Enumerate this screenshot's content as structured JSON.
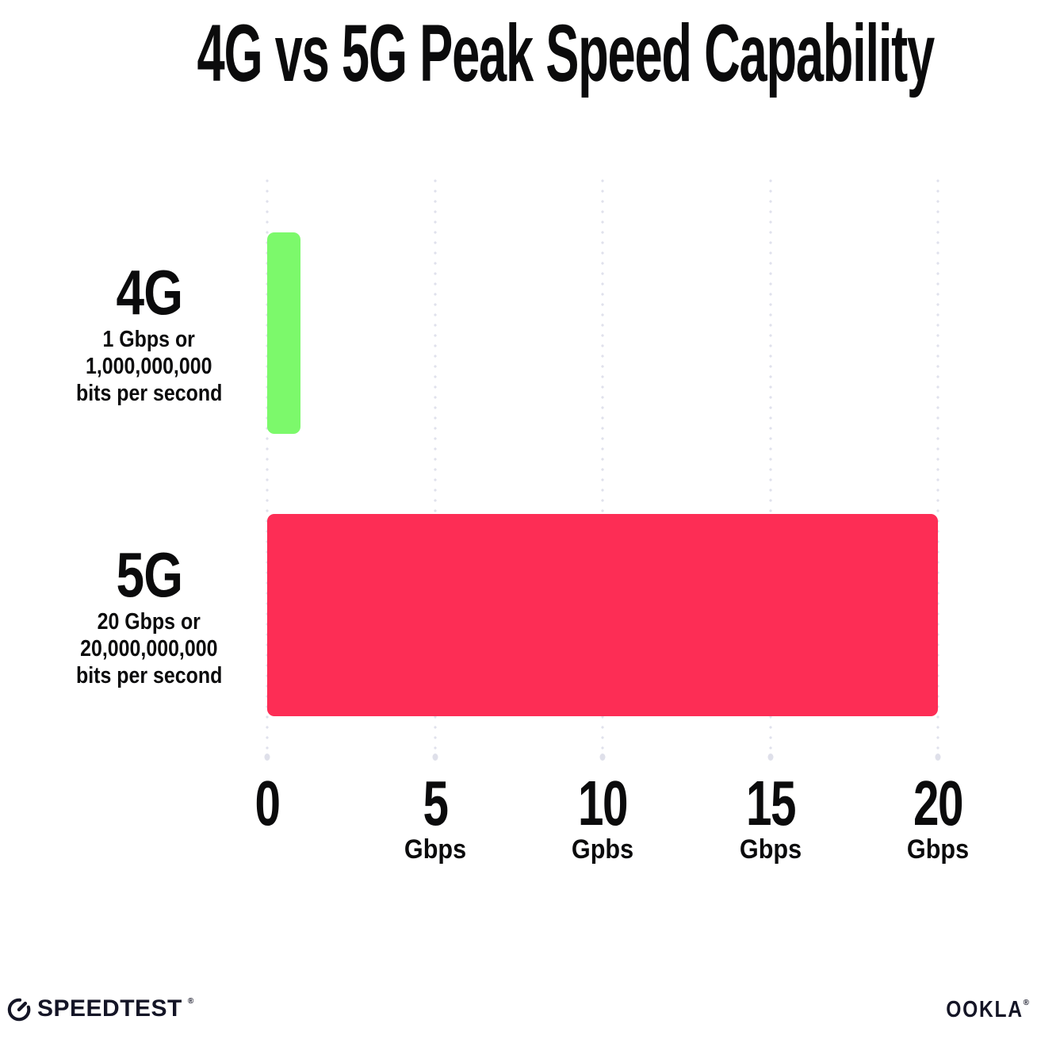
{
  "title": "4G vs 5G Peak Speed Capability",
  "colors": {
    "bar_4g_green": "#7CF96B",
    "bar_5g_red": "#FD2D55",
    "gridline_dot": "#E0E1EC",
    "text_ink": "#0B0B0C",
    "logo_ink": "#141526",
    "background": "#FFFFFF"
  },
  "chart_data": {
    "type": "bar",
    "orientation": "horizontal",
    "title": "4G vs 5G Peak Speed Capability",
    "categories": [
      "4G",
      "5G"
    ],
    "values": [
      1,
      20
    ],
    "value_unit": "Gbps",
    "xlim": [
      0,
      20
    ],
    "x_ticks": [
      0,
      5,
      10,
      15,
      20
    ],
    "grid": "dotted vertical gridlines at each x tick",
    "legend": "none",
    "rows": [
      {
        "label": "4G",
        "value": 1,
        "color": "#7CF96B",
        "sublines": [
          "1 Gbps or",
          "1,000,000,000",
          "bits per second"
        ]
      },
      {
        "label": "5G",
        "value": 20,
        "color": "#FD2D55",
        "sublines": [
          "20 Gbps or",
          "20,000,000,000",
          "bits per second"
        ]
      }
    ],
    "ticks": [
      {
        "number": "0",
        "unit": ""
      },
      {
        "number": "5",
        "unit": "Gbps"
      },
      {
        "number": "10",
        "unit": "Gpbs"
      },
      {
        "number": "15",
        "unit": "Gbps"
      },
      {
        "number": "20",
        "unit": "Gbps"
      }
    ]
  },
  "footer": {
    "speedtest_label": "SPEEDTEST",
    "speedtest_trademark": "®",
    "ookla_label": "OOKLA",
    "ookla_trademark": "®"
  }
}
